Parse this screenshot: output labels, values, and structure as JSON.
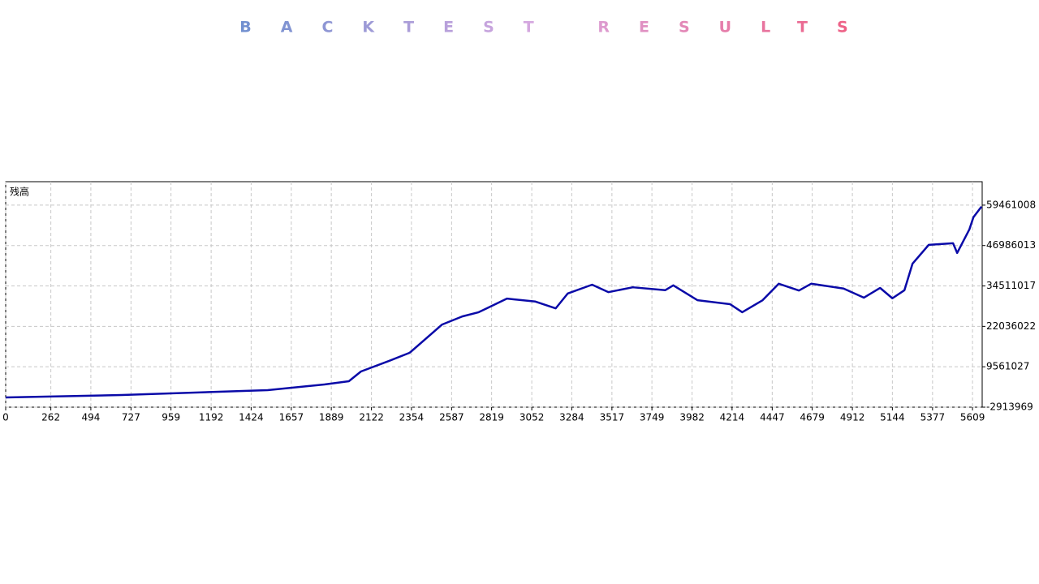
{
  "chart_data": {
    "type": "line",
    "title": "BACKTEST RESULTS",
    "x": [
      0,
      673,
      1520,
      1849,
      1991,
      2061,
      2226,
      2344,
      2532,
      2649,
      2744,
      2908,
      3073,
      3191,
      3261,
      3402,
      3496,
      3638,
      3826,
      3873,
      4014,
      4202,
      4273,
      4391,
      4485,
      4602,
      4673,
      4861,
      4979,
      5073,
      5144,
      5214,
      5261,
      5355,
      5496,
      5520,
      5591,
      5614,
      5661
    ],
    "series": [
      {
        "name": "残高",
        "color": "#0a0aa8",
        "values": [
          90000,
          840000,
          2350000,
          4100000,
          5100000,
          8100000,
          11400000,
          13900000,
          22600000,
          25100000,
          26400000,
          30600000,
          29700000,
          27600000,
          32200000,
          34900000,
          32600000,
          34100000,
          33200000,
          34700000,
          30100000,
          28900000,
          26400000,
          30100000,
          35200000,
          33100000,
          35200000,
          33700000,
          30900000,
          33900000,
          30700000,
          33200000,
          41400000,
          47200000,
          47700000,
          44700000,
          52000000,
          55700000,
          59000000
        ]
      }
    ],
    "xlim": [
      0,
      5665
    ],
    "xticks": [
      0,
      262,
      494,
      727,
      959,
      1192,
      1424,
      1657,
      1889,
      2122,
      2354,
      2587,
      2819,
      3052,
      3284,
      3517,
      3749,
      3982,
      4214,
      4447,
      4679,
      4912,
      5144,
      5377,
      5609
    ],
    "ylim": [
      -2913969,
      66700000
    ],
    "yticks": [
      -2913969,
      9561027,
      22036022,
      34511017,
      46986013,
      59461008
    ],
    "grid": true
  }
}
